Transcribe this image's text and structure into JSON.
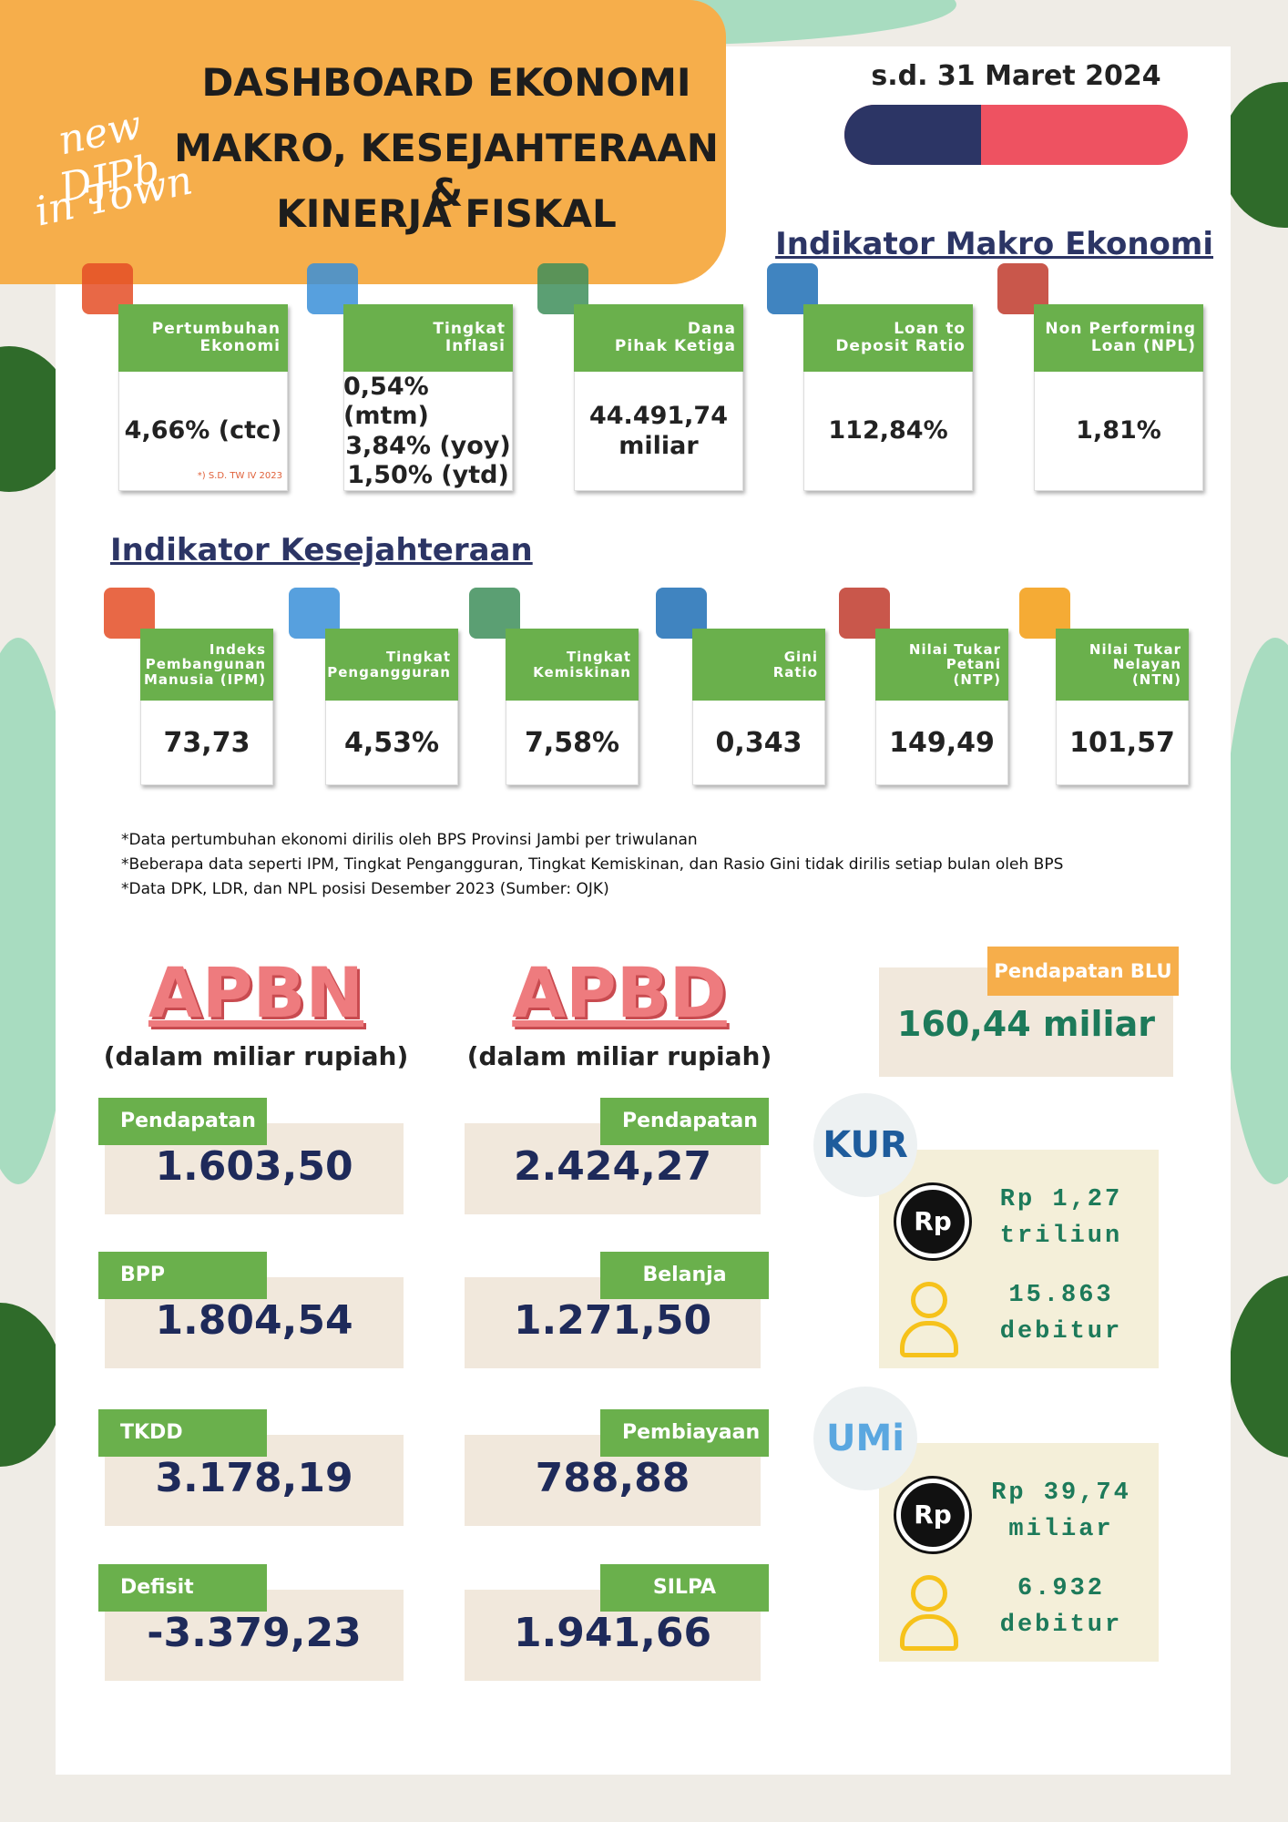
{
  "header": {
    "logo": [
      "new DJPb",
      "in Town"
    ],
    "title": [
      "DASHBOARD EKONOMI",
      "MAKRO, KESEJAHTERAAN &",
      "KINERJA FISKAL"
    ],
    "date": "s.d. 31 Maret 2024"
  },
  "makro": {
    "title": "Indikator Makro Ekonomi",
    "cards": [
      {
        "label": [
          "Pertumbuhan",
          "Ekonomi"
        ],
        "value": [
          "4,66% (ctc)"
        ],
        "note": "*) S.D. TW IV 2023"
      },
      {
        "label": [
          "Tingkat",
          "Inflasi"
        ],
        "value": [
          "0,54% (mtm)",
          "3,84% (yoy)",
          "1,50% (ytd)"
        ]
      },
      {
        "label": [
          "Dana",
          "Pihak Ketiga"
        ],
        "value": [
          "44.491,74",
          "miliar"
        ]
      },
      {
        "label": [
          "Loan to",
          "Deposit Ratio"
        ],
        "value": [
          "112,84%"
        ]
      },
      {
        "label": [
          "Non Performing",
          "Loan (NPL)"
        ],
        "value": [
          "1,81%"
        ]
      }
    ]
  },
  "kesejahteraan": {
    "title": "Indikator Kesejahteraan",
    "cards": [
      {
        "label": [
          "Indeks",
          "Pembangunan",
          "Manusia (IPM)"
        ],
        "value": [
          "73,73"
        ]
      },
      {
        "label": [
          "Tingkat",
          "Pengangguran"
        ],
        "value": [
          "4,53%"
        ]
      },
      {
        "label": [
          "Tingkat",
          "Kemiskinan"
        ],
        "value": [
          "7,58%"
        ]
      },
      {
        "label": [
          "Gini",
          "Ratio"
        ],
        "value": [
          "0,343"
        ]
      },
      {
        "label": [
          "Nilai Tukar",
          "Petani",
          "(NTP)"
        ],
        "value": [
          "149,49"
        ]
      },
      {
        "label": [
          "Nilai Tukar",
          "Nelayan",
          "(NTN)"
        ],
        "value": [
          "101,57"
        ]
      }
    ]
  },
  "notes": [
    "*Data pertumbuhan ekonomi dirilis oleh BPS Provinsi Jambi per triwulanan",
    "*Beberapa data seperti IPM, Tingkat Pengangguran, Tingkat Kemiskinan, dan Rasio Gini tidak dirilis setiap bulan oleh BPS",
    "*Data DPK, LDR, dan NPL posisi Desember 2023 (Sumber: OJK)"
  ],
  "apbn": {
    "title": "APBN",
    "subtitle": "(dalam miliar rupiah)",
    "items": [
      {
        "label": "Pendapatan",
        "value": "1.603,50"
      },
      {
        "label": "BPP",
        "value": "1.804,54"
      },
      {
        "label": "TKDD",
        "value": "3.178,19"
      },
      {
        "label": "Defisit",
        "value": "-3.379,23"
      }
    ]
  },
  "apbd": {
    "title": "APBD",
    "subtitle": "(dalam miliar rupiah)",
    "items": [
      {
        "label": "Pendapatan",
        "value": "2.424,27"
      },
      {
        "label": "Belanja",
        "value": "1.271,50"
      },
      {
        "label": "Pembiayaan",
        "value": "788,88"
      },
      {
        "label": "SILPA",
        "value": "1.941,66"
      }
    ]
  },
  "blu": {
    "label": "Pendapatan BLU",
    "value": "160,44 miliar"
  },
  "kur": {
    "logo": "KUR",
    "icon": "Rp",
    "amount": [
      "Rp 1,27",
      "triliun"
    ],
    "debitur": [
      "15.863",
      "debitur"
    ]
  },
  "umi": {
    "logo": "UMi",
    "icon": "Rp",
    "amount": [
      "Rp 39,74",
      "miliar"
    ],
    "debitur": [
      "6.932",
      "debitur"
    ]
  }
}
